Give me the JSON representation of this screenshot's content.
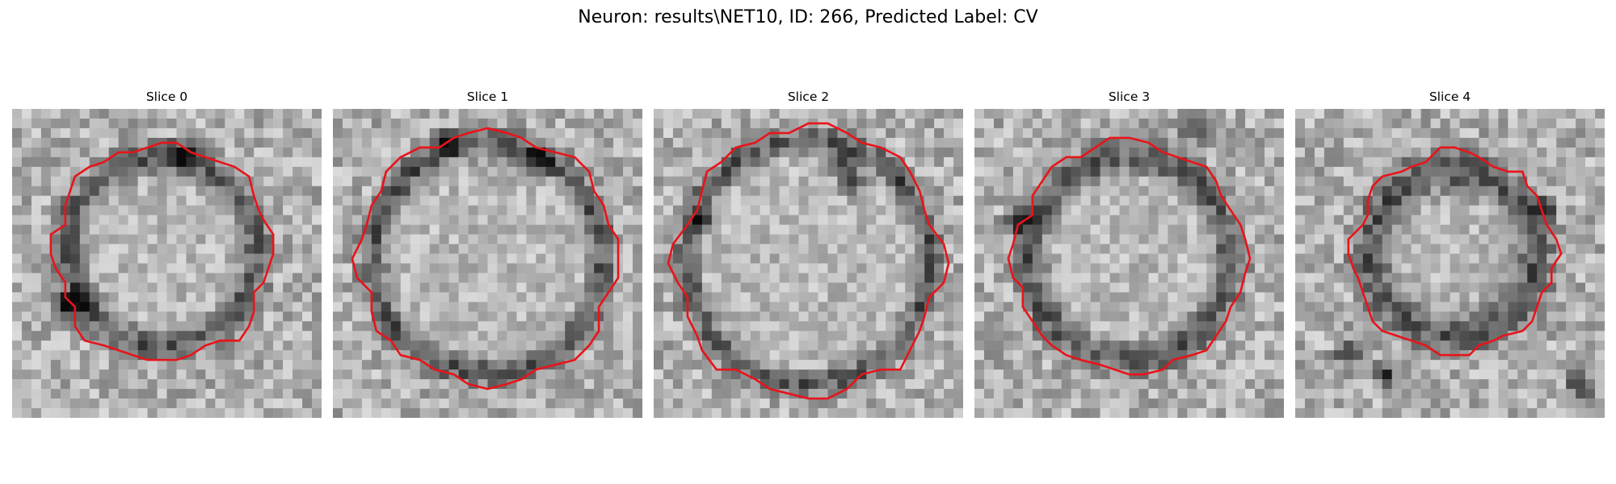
{
  "figure": {
    "title": "Neuron: results\\NET10, ID: 266, Predicted Label: CV"
  },
  "panels": [
    {
      "title": "Slice 0"
    },
    {
      "title": "Slice 1"
    },
    {
      "title": "Slice 2"
    },
    {
      "title": "Slice 3"
    },
    {
      "title": "Slice 4"
    }
  ],
  "colors": {
    "contour": "#e8141a",
    "background": "#ffffff"
  }
}
